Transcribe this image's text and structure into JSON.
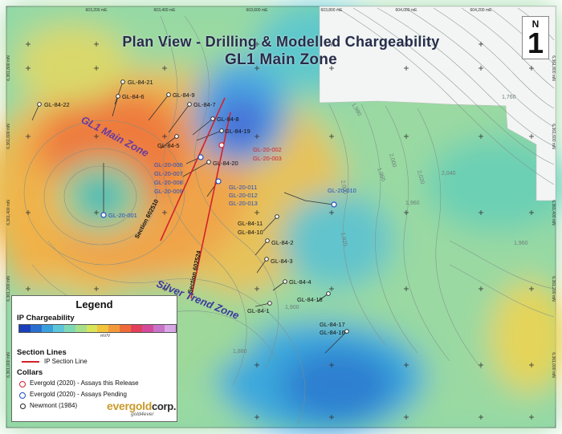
{
  "title": {
    "line1": "Plan View - Drilling & Modelled Chargeability",
    "line2": "GL1 Main Zone"
  },
  "north_arrow": {
    "letter": "N",
    "numeral": "1"
  },
  "grid": {
    "easting_labels": [
      "603,200 mE",
      "603,400 mE",
      "603,600 mE",
      "603,800 mE",
      "604,000 mE",
      "604,200 mE"
    ],
    "northing_labels_left": [
      "6,361,800 mN",
      "6,361,600 mN",
      "6,361,400 mN",
      "6,361,200 mN",
      "6,361,000 mN"
    ],
    "northing_labels_right": [
      "6,361,800 mN",
      "6,361,600 mN",
      "6,361,400 mN",
      "6,361,200 mN",
      "6,361,000 mN"
    ]
  },
  "contour_labels": [
    "1,980",
    "1,960",
    "2,000",
    "2,020",
    "2,040",
    "2,000",
    "1,960",
    "1,920",
    "1,900",
    "1,880",
    "1,960",
    "1,760"
  ],
  "zones": [
    {
      "name": "GL1 Main Zone",
      "color": "#6a3aa0"
    },
    {
      "name": "Silver Trend Zone",
      "color": "#3a3aa0"
    }
  ],
  "sections": [
    "Section 602510",
    "Section 602524"
  ],
  "drill_holes": {
    "newmont": [
      "GL-84-21",
      "GL-84-6",
      "GL-84-22",
      "GL-84-9",
      "GL-84-7",
      "GL-84-8",
      "GL-84-5",
      "GL-84-19",
      "GL-84-20",
      "GL-84-11",
      "GL-84-10",
      "GL-84-2",
      "GL-84-3",
      "GL-84-4",
      "GL-84-1",
      "GL-84-18",
      "GL-84-17",
      "GL-84-16"
    ],
    "assays_released": [
      "GL-20-002",
      "GL-20-003"
    ],
    "assays_pending": [
      "GL-20-006",
      "GL-20-007",
      "GL-20-008",
      "GL-20-009",
      "GL-20-001",
      "GL-20-011",
      "GL-20-012",
      "GL-20-013",
      "GL-20-010"
    ]
  },
  "legend": {
    "title": "Legend",
    "ip_heading": "IP Chargeability",
    "ip_unit": "mV/V",
    "ramp_colors": [
      "#1a3fb8",
      "#2a6fd0",
      "#3aa0dc",
      "#5cc6d8",
      "#7fd8b4",
      "#a8e08a",
      "#d8e45a",
      "#f2c43c",
      "#f29a3a",
      "#ee6a3a",
      "#e2405a",
      "#d24a9a",
      "#c873c8",
      "#d8a6e4"
    ],
    "section_heading": "Section Lines",
    "section_item": "IP Section Line",
    "collars_heading": "Collars",
    "collar_items": [
      "Evergold (2020) - Assays this Release",
      "Evergold (2020) - Assays Pending",
      "Newmont (1984)"
    ]
  },
  "logo": {
    "brand_gold": "evergold",
    "brand_dark": "corp.",
    "tagline": "gold4ever"
  }
}
